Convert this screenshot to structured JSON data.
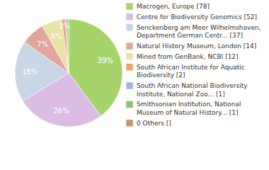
{
  "chart_data": {
    "type": "pie",
    "categories": [
      "Macrogen, Europe [78]",
      "Centre for Biodiversity Genomics [52]",
      "Senckenberg am Meer Wilhelmshaven, Department German Centr... [37]",
      "Natural History Museum, London [14]",
      "Mined from GenBank, NCBI [12]",
      "South African Institute for Aquatic Biodiversity [2]",
      "South African National Biodiversity Institute, National Zoo... [1]",
      "Smithsonian Institution, National Museum of Natural History... [1]",
      "0 Others []"
    ],
    "values": [
      39,
      26,
      18,
      7,
      6,
      1,
      0.5,
      0.5,
      0
    ],
    "value_labels": [
      "39%",
      "26%",
      "18%",
      "7%",
      "6%",
      "1%",
      null,
      null,
      null
    ],
    "colors": [
      "#a6d46a",
      "#dbbde3",
      "#c9d6e6",
      "#e1a59e",
      "#e8e4a8",
      "#f0a460",
      "#9fb9df",
      "#8fc46c",
      "#c9966c"
    ],
    "data_labels": true,
    "legend": "right"
  }
}
